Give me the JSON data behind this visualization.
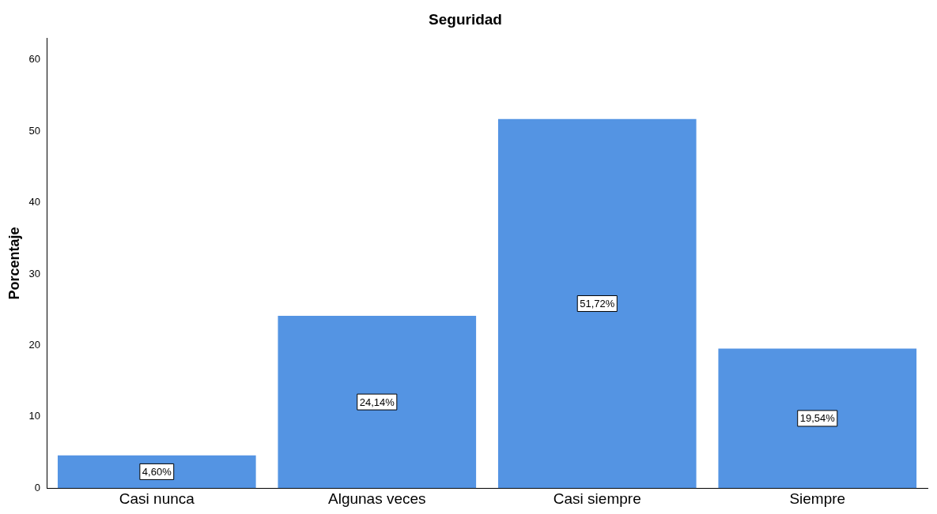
{
  "chart_data": {
    "type": "bar",
    "title": "Seguridad",
    "ylabel": "Porcentaje",
    "categories": [
      "Casi nunca",
      "Algunas veces",
      "Casi siempre",
      "Siempre"
    ],
    "values": [
      4.6,
      24.14,
      51.72,
      19.54
    ],
    "value_labels": [
      "4,60%",
      "24,14%",
      "51,72%",
      "19,54%"
    ],
    "color": "#5494e3",
    "ylim": [
      0,
      63
    ],
    "yticks": [
      0,
      10,
      20,
      30,
      40,
      50,
      60
    ],
    "grid": false,
    "legend": false
  }
}
